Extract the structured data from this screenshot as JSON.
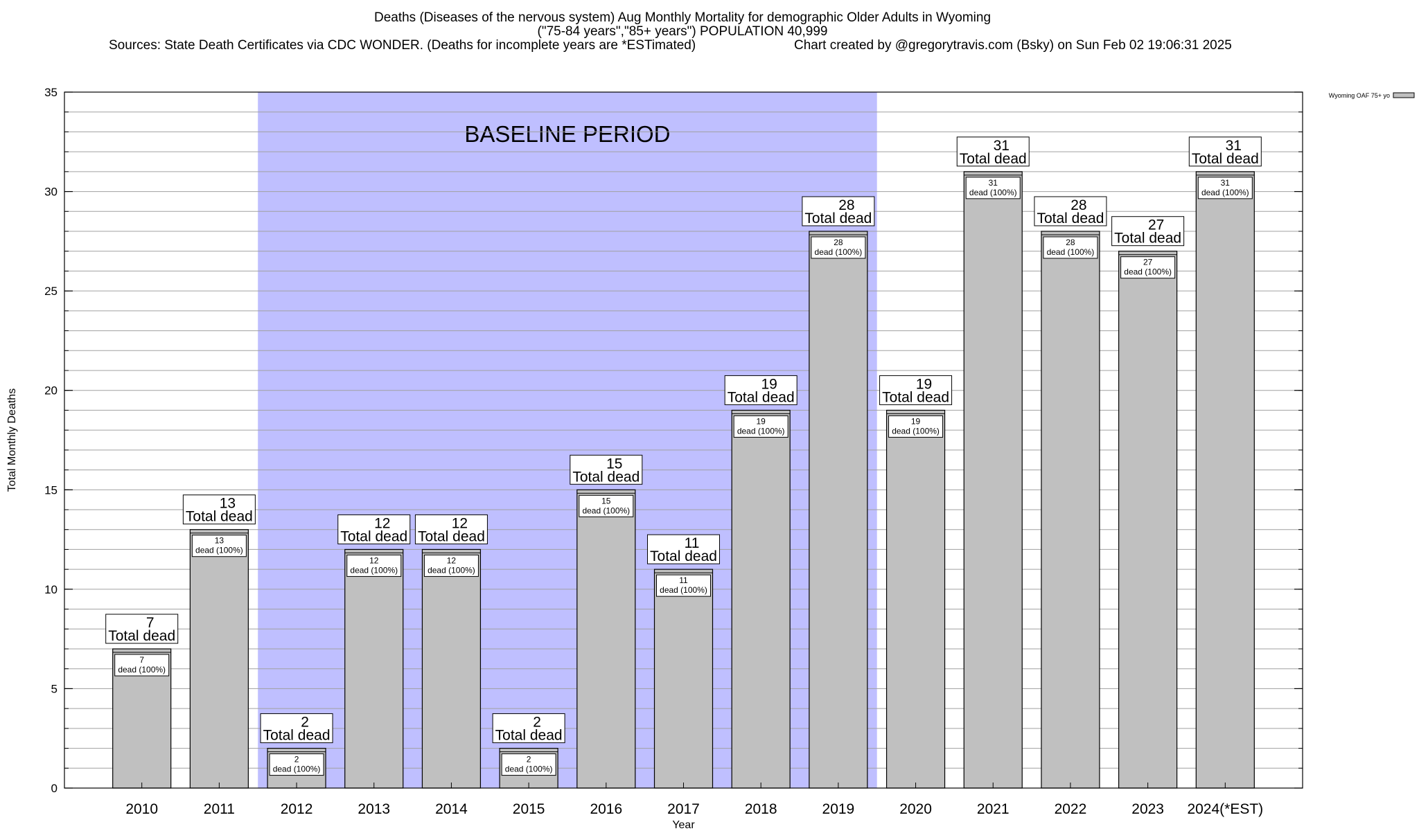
{
  "chart_data": {
    "type": "bar",
    "title_lines": [
      "Deaths (Diseases of the nervous system) Aug Monthly Mortality for demographic Older Adults in Wyoming",
      "(\"75-84 years\",\"85+ years\") POPULATION 40,999",
      "Sources: State Death Certificates via CDC WONDER. (Deaths for incomplete years are *ESTimated)",
      "Chart created by @gregorytravis.com (Bsky) on Sun Feb 02 19:06:31 2025"
    ],
    "xlabel": "Year",
    "ylabel": "Total Monthly Deaths",
    "ylim": [
      0,
      35
    ],
    "yticks": [
      0,
      5,
      10,
      15,
      20,
      25,
      30,
      35
    ],
    "minor_tick_step": 1,
    "categories": [
      "2010",
      "2011",
      "2012",
      "2013",
      "2014",
      "2015",
      "2016",
      "2017",
      "2018",
      "2019",
      "2020",
      "2021",
      "2022",
      "2023",
      "2024(*EST)"
    ],
    "series": [
      {
        "name": "Wyoming OAF 75+ yo",
        "values": [
          7,
          13,
          2,
          12,
          12,
          2,
          15,
          11,
          19,
          28,
          19,
          31,
          28,
          27,
          31
        ],
        "color": "#c0c0c0"
      }
    ],
    "total_label_suffix": "Total dead",
    "inner_label_suffix": "dead (100%)",
    "baseline_period": {
      "label": "BASELINE PERIOD",
      "start_category": "2012",
      "end_category": "2019",
      "color": "#bfbfff"
    },
    "grid": true,
    "legend": {
      "position": "top-right",
      "entry": "Wyoming OAF 75+ yo"
    }
  }
}
